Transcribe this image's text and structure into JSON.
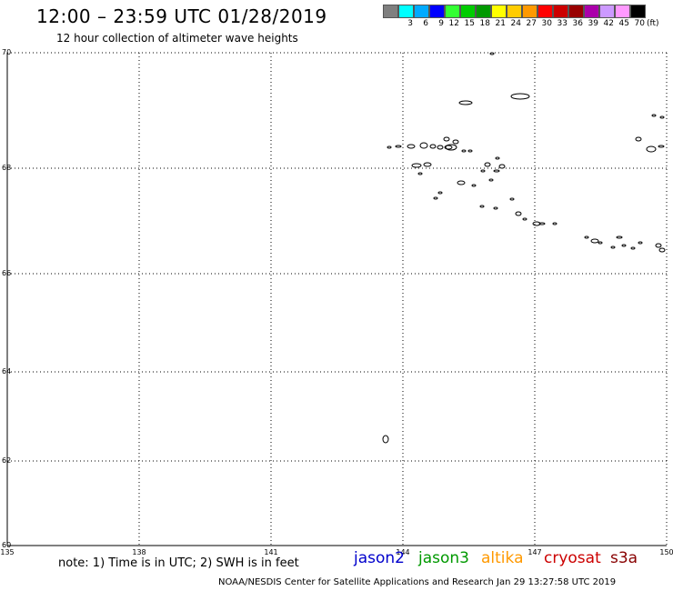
{
  "header": {
    "title": "12:00 – 23:59 UTC 01/28/2019",
    "subtitle": "12 hour collection of altimeter wave heights"
  },
  "colorbar": {
    "unit": "(ft)",
    "colors": [
      "#7f7f7f",
      "#00ffff",
      "#00aaff",
      "#0000ff",
      "#33ff33",
      "#00cc00",
      "#009900",
      "#ffff00",
      "#ffcc00",
      "#ff9900",
      "#ff0000",
      "#cc0000",
      "#990000",
      "#aa00aa",
      "#cc99ff",
      "#ff99ff",
      "#000000"
    ],
    "labels": [
      "3",
      "6",
      "9",
      "12",
      "15",
      "18",
      "21",
      "24",
      "27",
      "30",
      "33",
      "36",
      "39",
      "42",
      "45",
      "70"
    ]
  },
  "map": {
    "lat_labels": [
      "70",
      "68",
      "66",
      "64",
      "62",
      "60"
    ],
    "lon_labels": [
      "135",
      "138",
      "141",
      "144",
      "147",
      "150"
    ]
  },
  "footer": {
    "note": "note: 1) Time is in UTC; 2) SWH is in feet",
    "satellites": [
      {
        "name": "jason2",
        "color": "#0000cc"
      },
      {
        "name": "jason3",
        "color": "#009900"
      },
      {
        "name": "altika",
        "color": "#ff9900"
      },
      {
        "name": "cryosat",
        "color": "#cc0000"
      },
      {
        "name": "s3a",
        "color": "#880000"
      }
    ],
    "credit": "NOAA/NESDIS Center for Satellite Applications and Research    Jan 29 13:27:58 UTC 2019"
  }
}
